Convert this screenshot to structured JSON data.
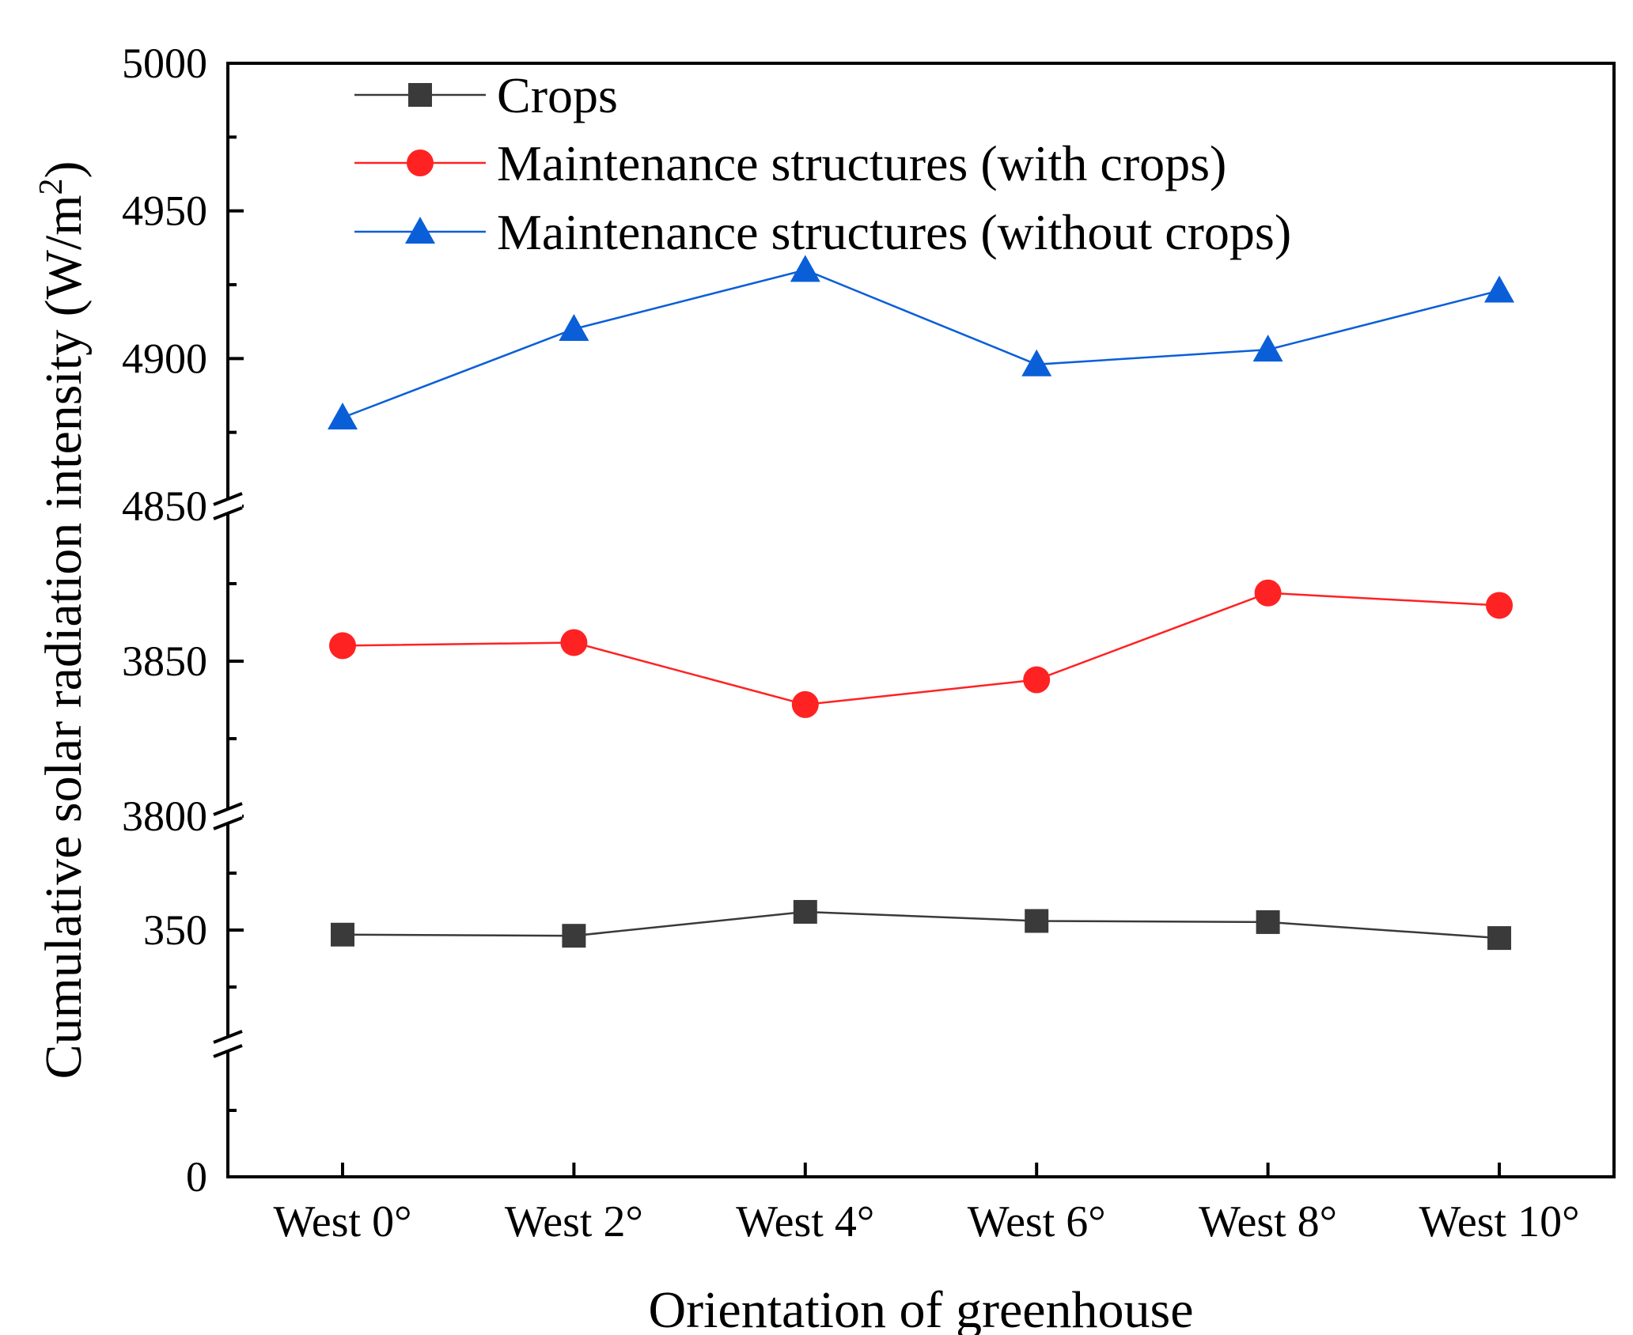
{
  "chart_data": {
    "type": "line",
    "title": "",
    "xlabel": "Orientation of greenhouse",
    "ylabel": "Cumulative solar radiation intensity (W/m",
    "ylabel_superscript": "2",
    "ylabel_close": ")",
    "categories": [
      "West 0°",
      "West 2°",
      "West 4°",
      "West 6°",
      "West 8°",
      "West 10°"
    ],
    "axis_break": true,
    "y_segments": [
      {
        "range": [
          4850,
          5000
        ],
        "ticks": [
          4850,
          4900,
          4950,
          5000
        ],
        "tick_labels": [
          "4850",
          "4900",
          "4950",
          "5000"
        ],
        "minor_ticks": [
          4875,
          4925,
          4975
        ]
      },
      {
        "range": [
          3800,
          3900
        ],
        "ticks": [
          3800,
          3850
        ],
        "tick_labels": [
          "3800",
          "3850"
        ],
        "minor_ticks": [
          3825,
          3875
        ]
      },
      {
        "range": [
          300,
          400
        ],
        "ticks": [
          350
        ],
        "tick_labels": [
          "350"
        ],
        "minor_ticks": [
          325,
          375
        ]
      },
      {
        "range": [
          0,
          100
        ],
        "ticks": [
          0
        ],
        "tick_labels": [
          "0"
        ],
        "minor_ticks": [
          50
        ]
      }
    ],
    "legend_position": "top-left",
    "series": [
      {
        "name": "Crops",
        "color": "#3a3a3a",
        "marker": "square",
        "values": [
          348,
          347.5,
          358,
          354,
          353.5,
          346.5
        ]
      },
      {
        "name": "Maintenance structures (with crops)",
        "color": "#ff2222",
        "marker": "circle",
        "values": [
          3855,
          3856,
          3836,
          3844,
          3872,
          3868
        ]
      },
      {
        "name": "Maintenance structures (without crops)",
        "color": "#0a5fd8",
        "marker": "triangle",
        "values": [
          4880,
          4910,
          4930,
          4898,
          4903,
          4923
        ]
      }
    ]
  }
}
